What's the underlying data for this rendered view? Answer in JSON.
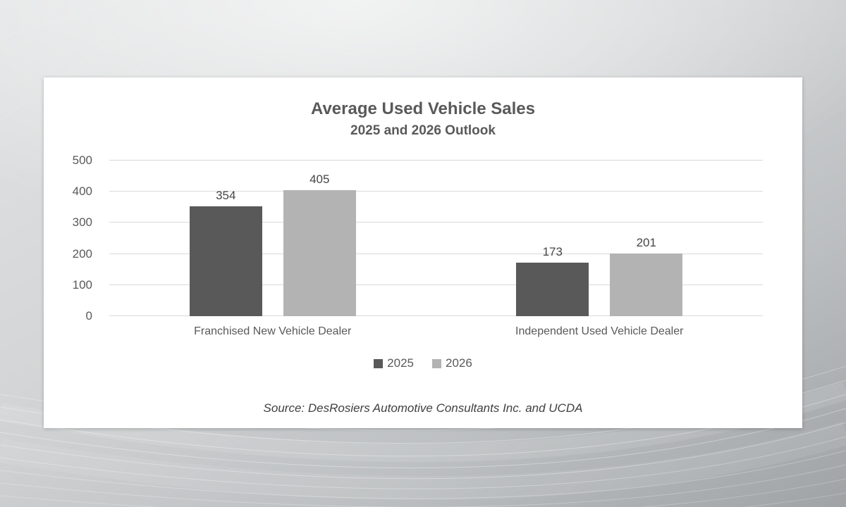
{
  "chart_data": {
    "type": "bar",
    "title": "Average Used Vehicle Sales",
    "subtitle": "2025 and 2026 Outlook",
    "categories": [
      "Franchised New Vehicle Dealer",
      "Independent Used Vehicle Dealer"
    ],
    "series": [
      {
        "name": "2025",
        "values": [
          354,
          173
        ],
        "color": "#595959"
      },
      {
        "name": "2026",
        "values": [
          405,
          201
        ],
        "color": "#b3b3b3"
      }
    ],
    "ylim": [
      0,
      500
    ],
    "yticks": [
      0,
      100,
      200,
      300,
      400,
      500
    ],
    "grid": true,
    "legend_position": "bottom",
    "gridline_color": "#d9d9d9",
    "text_color": "#595959",
    "value_labels": [
      [
        354,
        173
      ],
      [
        405,
        201
      ]
    ]
  },
  "source_note": "Source: DesRosiers Automotive Consultants Inc. and UCDA"
}
